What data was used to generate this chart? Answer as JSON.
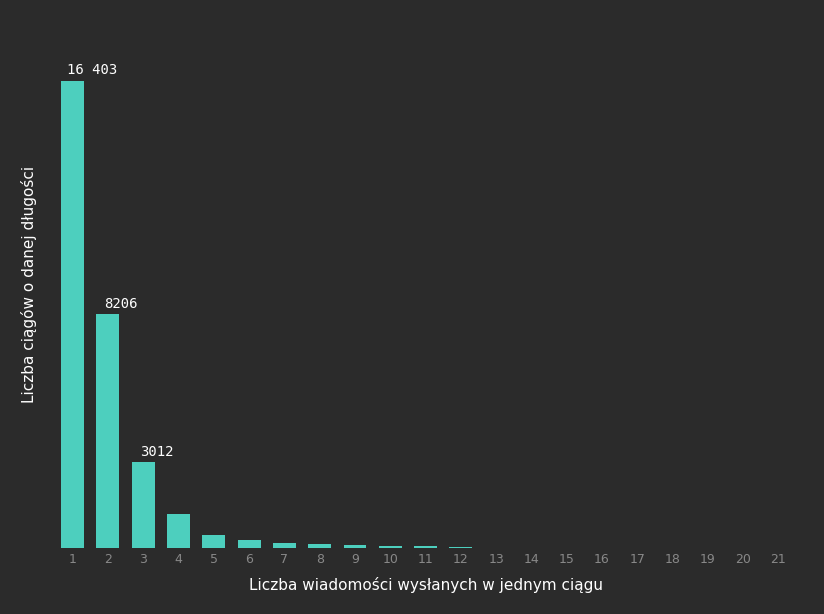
{
  "categories": [
    1,
    2,
    3,
    4,
    5,
    6,
    7,
    8,
    9,
    10,
    11,
    12,
    13,
    14,
    15,
    16,
    17,
    18,
    19,
    20,
    21
  ],
  "values": [
    16403,
    8206,
    3012,
    1200,
    480,
    280,
    180,
    140,
    110,
    90,
    70,
    50,
    0,
    0,
    0,
    0,
    0,
    0,
    0,
    0,
    0
  ],
  "bar_color": "#4dcfbe",
  "background_color": "#2b2b2b",
  "text_color": "#ffffff",
  "tick_color": "#888888",
  "xlabel": "Liczba wiadomości wysłanych w jednym ciągu",
  "ylabel": "Liczba ciągów o danej długości",
  "annotated_bars": [
    0,
    1,
    2
  ],
  "annotated_values": [
    "16 403",
    "8206",
    "3012"
  ],
  "ylim": [
    0,
    18500
  ],
  "font_size_labels": 11,
  "font_size_ticks": 9,
  "font_size_annotations": 10
}
